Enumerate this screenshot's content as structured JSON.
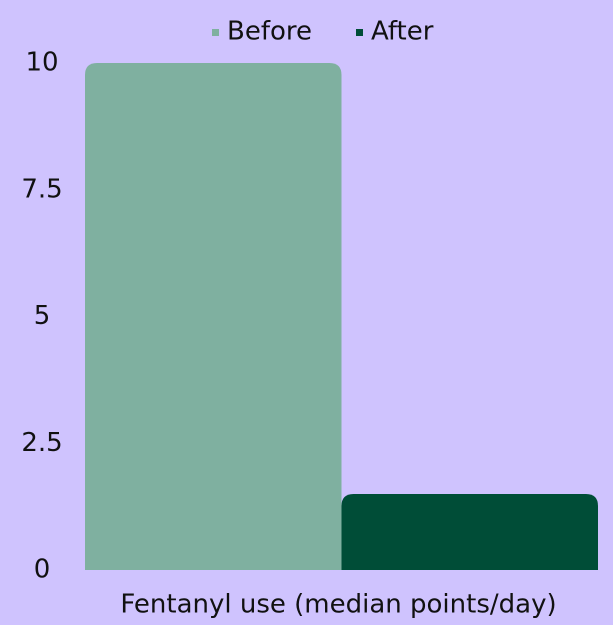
{
  "chart_data": {
    "type": "bar",
    "categories": [
      "Fentanyl use (median points/day)"
    ],
    "series": [
      {
        "name": "Before",
        "color": "#7fb0a0",
        "values": [
          10
        ]
      },
      {
        "name": "After",
        "color": "#004d37",
        "values": [
          1.5
        ]
      }
    ],
    "ylim": [
      0,
      10
    ],
    "yticks": [
      0,
      2.5,
      5,
      7.5,
      10
    ],
    "grid": false,
    "legend": "top"
  }
}
